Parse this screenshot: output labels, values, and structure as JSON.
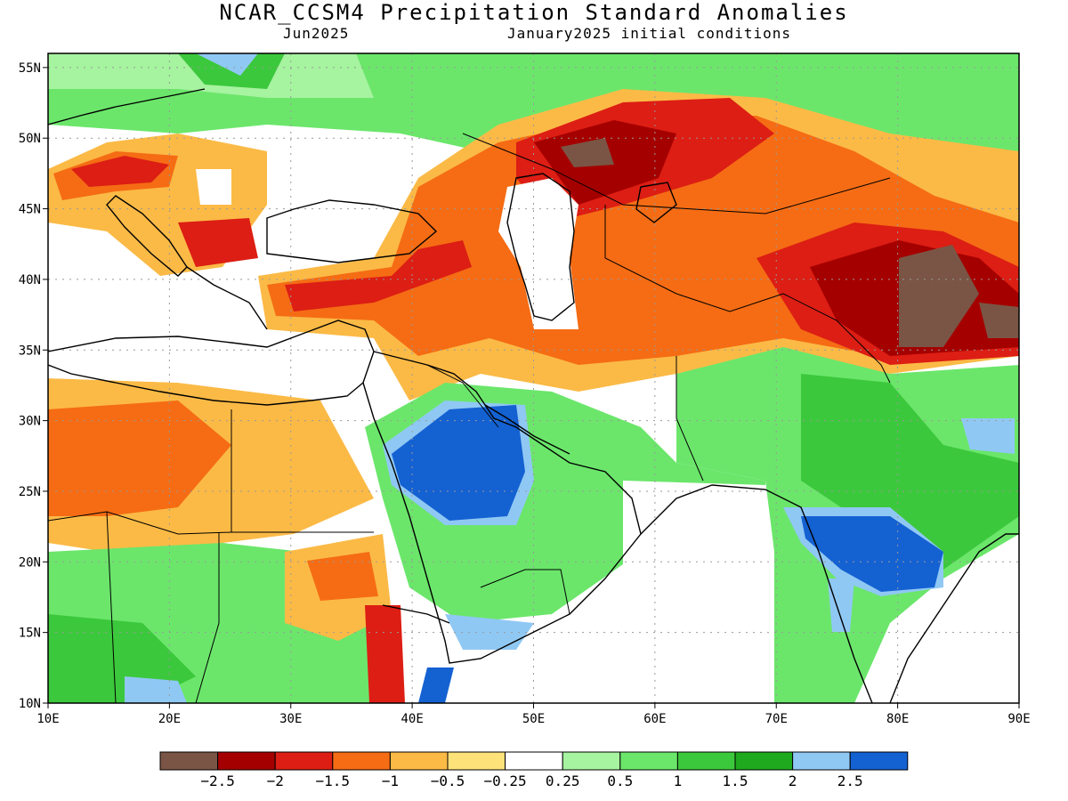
{
  "title": "NCAR_CCSM4 Precipitation Standard Anomalies",
  "subtitle_left": "Jun2025",
  "subtitle_right": "January2025 initial conditions",
  "axes": {
    "x_ticks": [
      "10E",
      "20E",
      "30E",
      "40E",
      "50E",
      "60E",
      "70E",
      "80E",
      "90E"
    ],
    "y_ticks": [
      "55N",
      "50N",
      "45N",
      "40N",
      "35N",
      "30N",
      "25N",
      "20N",
      "15N",
      "10N"
    ],
    "lon_range": [
      10,
      90
    ],
    "lat_range": [
      10,
      56
    ],
    "grid": true
  },
  "colorbar": {
    "colors": [
      "#7a5545",
      "#a50000",
      "#dc1e14",
      "#f56c14",
      "#fbba46",
      "#fde27a",
      "#ffffff",
      "#a6f3a0",
      "#6be66b",
      "#3cc83c",
      "#1ea91e",
      "#90c8f4",
      "#1461d2"
    ],
    "labels": [
      "-2.5",
      "-2",
      "-1.5",
      "-1",
      "-0.5",
      "-0.25",
      "0.25",
      "0.5",
      "1",
      "1.5",
      "2",
      "2.5"
    ]
  }
}
